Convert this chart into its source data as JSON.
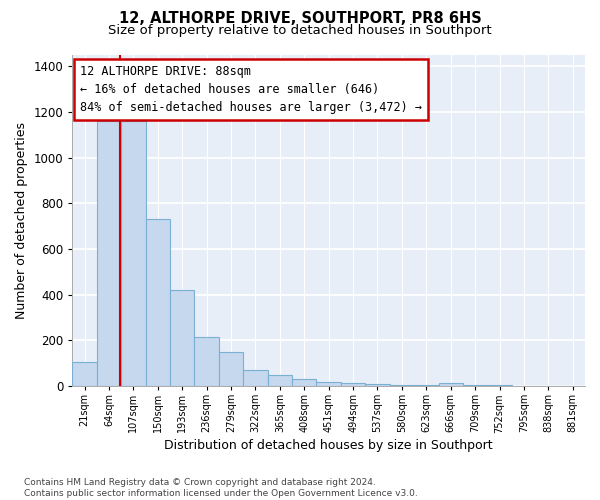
{
  "title": "12, ALTHORPE DRIVE, SOUTHPORT, PR8 6HS",
  "subtitle": "Size of property relative to detached houses in Southport",
  "xlabel": "Distribution of detached houses by size in Southport",
  "ylabel": "Number of detached properties",
  "categories": [
    "21sqm",
    "64sqm",
    "107sqm",
    "150sqm",
    "193sqm",
    "236sqm",
    "279sqm",
    "322sqm",
    "365sqm",
    "408sqm",
    "451sqm",
    "494sqm",
    "537sqm",
    "580sqm",
    "623sqm",
    "666sqm",
    "709sqm",
    "752sqm",
    "795sqm",
    "838sqm",
    "881sqm"
  ],
  "bar_heights": [
    105,
    1160,
    1160,
    730,
    420,
    215,
    150,
    70,
    50,
    30,
    20,
    15,
    10,
    5,
    5,
    15,
    5,
    3,
    2,
    2,
    1
  ],
  "bar_color": "#c5d8ee",
  "bar_edge_color": "#7ab0d4",
  "vline_color": "#cc0000",
  "vline_x": 1.47,
  "annotation_line1": "12 ALTHORPE DRIVE: 88sqm",
  "annotation_line2": "← 16% of detached houses are smaller (646)",
  "annotation_line3": "84% of semi-detached houses are larger (3,472) →",
  "ann_box_color": "white",
  "ann_edge_color": "#cc0000",
  "ylim": [
    0,
    1450
  ],
  "yticks": [
    0,
    200,
    400,
    600,
    800,
    1000,
    1200,
    1400
  ],
  "bg_color": "#e8eef8",
  "grid_color": "#ffffff",
  "footer_line1": "Contains HM Land Registry data © Crown copyright and database right 2024.",
  "footer_line2": "Contains public sector information licensed under the Open Government Licence v3.0."
}
